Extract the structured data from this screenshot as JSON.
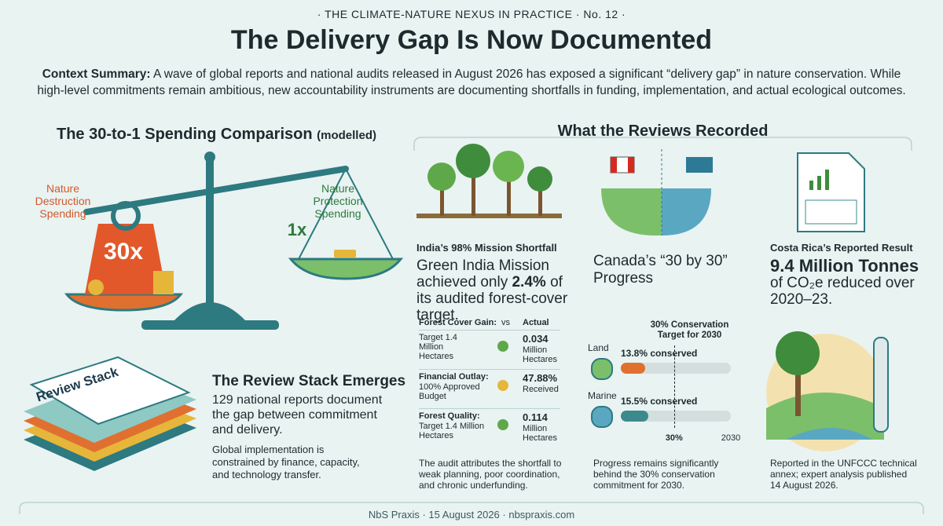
{
  "header": {
    "kicker": "THE CLIMATE-NATURE NEXUS IN PRACTICE",
    "issue": "No. 12",
    "title": "The Delivery Gap Is Now Documented",
    "context_label": "Context Summary:",
    "context": "A wave of global reports and national audits released in August 2026 has exposed a significant “delivery gap” in nature conservation. While high-level commitments remain ambitious, new accountability instruments are documenting shortfalls in funding, implementation, and actual ecological outcomes."
  },
  "spending": {
    "title": "The 30-to-1 Spending Comparison",
    "qualifier": "(modelled)",
    "destruction_label": "Nature Destruction Spending",
    "protection_label": "Nature Protection Spending",
    "heavy": "30x",
    "light": "1x"
  },
  "stack": {
    "label": "Review Stack",
    "title": "The Review Stack Emerges",
    "body": "129 national reports document the gap between commitment and delivery.",
    "note": "Global implementation is constrained by finance, capacity, and technology transfer."
  },
  "reviews": {
    "title": "What the Reviews Recorded",
    "india": {
      "kicker": "India’s 98% Mission Shortfall",
      "headline_start": "Green India Mission achieved only",
      "headline_figure": "2.4%",
      "headline_end": "of its audited forest-cover target.",
      "table_header": [
        "Forest Cover Gain:",
        "vs",
        "Actual"
      ],
      "rows": [
        {
          "label": null,
          "target": "Target 1.4 Million Hectares",
          "actual": "0.034",
          "actual_unit": "Million Hectares"
        },
        {
          "label": "Financial Outlay:",
          "target": "100% Approved Budget",
          "actual": "47.88%",
          "actual_unit": "Received"
        },
        {
          "label": "Forest Quality:",
          "target": "Target 1.4 Million Hectares",
          "actual": "0.114",
          "actual_unit": "Million Hectares"
        }
      ],
      "footnote": "The audit attributes the shortfall to weak planning, poor coordination, and chronic underfunding."
    },
    "canada": {
      "title": "Canada’s “30 by 30” Progress",
      "target_label": "30% Conservation Target for 2030",
      "xlim": [
        0,
        62
      ],
      "target": {
        "value": 30,
        "label": "30%"
      },
      "end_label": "2030",
      "bars": [
        {
          "name": "Land",
          "value": 13.8,
          "label": "13.8% conserved",
          "color": "#e0702e"
        },
        {
          "name": "Marine",
          "value": 15.5,
          "label": "15.5% conserved",
          "color": "#3c8a8c"
        }
      ],
      "footnote": "Progress remains significantly behind the 30% conservation commitment for 2030."
    },
    "costa_rica": {
      "kicker": "Costa Rica’s Reported Result",
      "headline": "9.4 Million Tonnes",
      "body": "of CO₂e reduced over 2020–23.",
      "footnote": "Reported in the UNFCCC technical annex; expert analysis published 14 August 2026."
    }
  },
  "footer": {
    "brand": "NbS Praxis",
    "date": "15 August 2026",
    "site": "nbspraxis.com"
  }
}
